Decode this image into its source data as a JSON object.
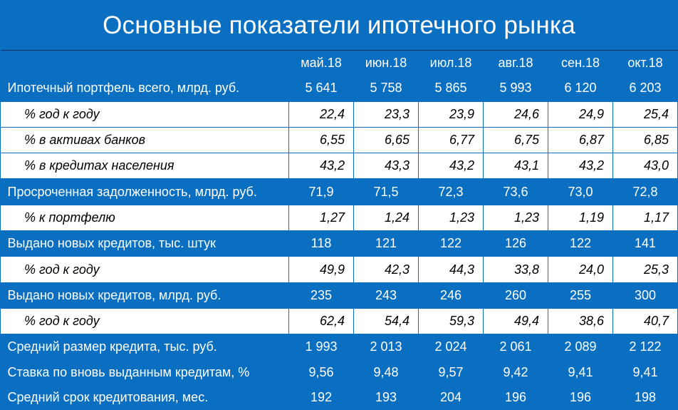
{
  "title": "Основные показатели ипотечного рынка",
  "colors": {
    "background": "#0a6fc0",
    "sub_row": "#ffffff"
  },
  "columns": [
    "май.18",
    "июн.18",
    "июл.18",
    "авг.18",
    "сен.18",
    "окт.18"
  ],
  "rows": [
    {
      "type": "main",
      "label": "Ипотечный портфель всего, млрд. руб.",
      "values": [
        "5 641",
        "5 758",
        "5 865",
        "5 993",
        "6 120",
        "6 203"
      ]
    },
    {
      "type": "sub",
      "label": "% год к году",
      "values": [
        "22,4",
        "23,3",
        "23,9",
        "24,6",
        "24,9",
        "25,4"
      ]
    },
    {
      "type": "sub",
      "label": "% в активах банков",
      "values": [
        "6,55",
        "6,65",
        "6,77",
        "6,75",
        "6,87",
        "6,85"
      ]
    },
    {
      "type": "sub",
      "label": "% в кредитах населения",
      "values": [
        "43,2",
        "43,3",
        "43,2",
        "43,1",
        "43,2",
        "43,0"
      ]
    },
    {
      "type": "main",
      "label": "Просроченная задолженность, млрд. руб.",
      "values": [
        "71,9",
        "71,5",
        "72,3",
        "73,6",
        "73,0",
        "72,8"
      ]
    },
    {
      "type": "sub",
      "label": "% к портфелю",
      "values": [
        "1,27",
        "1,24",
        "1,23",
        "1,23",
        "1,19",
        "1,17"
      ]
    },
    {
      "type": "main",
      "label": "Выдано новых кредитов, тыс. штук",
      "values": [
        "118",
        "121",
        "122",
        "126",
        "122",
        "141"
      ]
    },
    {
      "type": "sub",
      "label": "% год к году",
      "values": [
        "49,9",
        "42,3",
        "44,3",
        "33,8",
        "24,0",
        "25,3"
      ]
    },
    {
      "type": "main",
      "label": "Выдано новых кредитов, млрд. руб.",
      "values": [
        "235",
        "243",
        "246",
        "260",
        "255",
        "300"
      ]
    },
    {
      "type": "sub",
      "label": "% год к году",
      "values": [
        "62,4",
        "54,4",
        "59,3",
        "49,4",
        "38,6",
        "40,7"
      ]
    },
    {
      "type": "main",
      "label": "Средний размер кредита, тыс. руб.",
      "values": [
        "1 993",
        "2 013",
        "2 024",
        "2 061",
        "2 089",
        "2 122"
      ]
    },
    {
      "type": "main",
      "label": "Ставка по вновь выданным кредитам, %",
      "values": [
        "9,56",
        "9,48",
        "9,57",
        "9,42",
        "9,41",
        "9,41"
      ]
    },
    {
      "type": "main",
      "label": "Средний срок кредитования, мес.",
      "values": [
        "192",
        "193",
        "204",
        "196",
        "196",
        "198"
      ]
    }
  ]
}
